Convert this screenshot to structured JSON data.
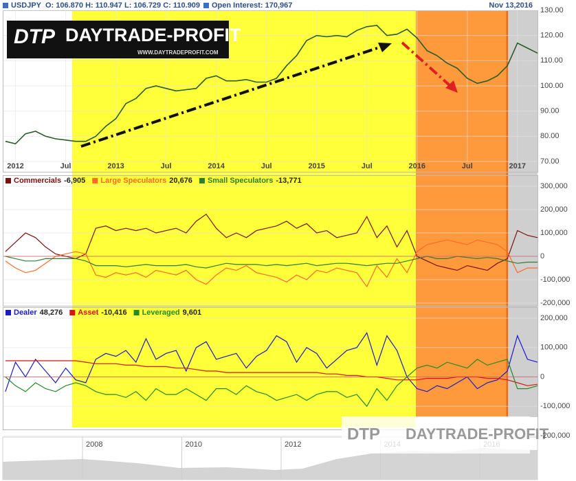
{
  "header": {
    "symbol": "USDJPY",
    "ohlc": "O: 106.870 H: 110.947 L: 106.729 C: 110.909",
    "open_interest": "Open Interest: 170,967",
    "date": "Nov 13,2016"
  },
  "logo": {
    "mark": "DTP",
    "name": "DAYTRADE-PROFIT",
    "url": "WWW.DAYTRADEPROFIT.COM"
  },
  "navigator": {
    "labels": [
      "2008",
      "2010",
      "2012",
      "2014",
      "2016"
    ]
  },
  "chart_data": [
    {
      "type": "line",
      "x": [
        2011.9,
        2012.0,
        2012.1,
        2012.2,
        2012.3,
        2012.4,
        2012.5,
        2012.6,
        2012.7,
        2012.8,
        2012.9,
        2013.0,
        2013.1,
        2013.2,
        2013.3,
        2013.4,
        2013.5,
        2013.6,
        2013.7,
        2013.8,
        2013.9,
        2014.0,
        2014.1,
        2014.2,
        2014.3,
        2014.4,
        2014.5,
        2014.6,
        2014.7,
        2014.8,
        2014.9,
        2015.0,
        2015.1,
        2015.2,
        2015.3,
        2015.4,
        2015.5,
        2015.6,
        2015.7,
        2015.8,
        2015.9,
        2016.0,
        2016.1,
        2016.2,
        2016.3,
        2016.4,
        2016.5,
        2016.6,
        2016.7,
        2016.8,
        2016.9,
        2017.0,
        2017.1,
        2017.2
      ],
      "values": [
        78,
        77,
        81,
        82,
        80,
        79,
        78.5,
        78,
        78,
        80,
        84,
        87,
        93,
        95,
        99,
        100,
        99,
        98,
        98.5,
        99,
        103,
        104,
        102,
        102,
        102.5,
        101.5,
        101.5,
        103,
        108,
        112,
        118,
        120,
        119.5,
        120,
        119.5,
        122,
        123.5,
        124,
        120,
        120.5,
        122.5,
        119,
        114,
        112,
        109,
        107,
        103,
        101,
        102,
        104,
        108,
        117,
        115,
        113
      ],
      "color": "#2a5a2a",
      "xlim": [
        2011.88,
        2017.2
      ],
      "xticks": [
        2012,
        {
          "value": 2012.5,
          "label": "Jul"
        },
        2013,
        {
          "value": 2013.5,
          "label": "Jul"
        },
        2014,
        {
          "value": 2014.5,
          "label": "Jul"
        },
        2015,
        {
          "value": 2015.5,
          "label": "Jul"
        },
        2016,
        {
          "value": 2016.5,
          "label": "Jul"
        },
        2017
      ],
      "ylim": [
        70,
        130
      ],
      "yticks": [
        {
          "value": 70,
          "label": "70.00"
        },
        {
          "value": 80,
          "label": "80.00"
        },
        {
          "value": 90,
          "label": "90.00"
        },
        {
          "value": 100,
          "label": "100.00"
        },
        {
          "value": 110,
          "label": "110.00"
        },
        {
          "value": 120,
          "label": "120.00"
        },
        {
          "value": 130,
          "label": "130.00"
        }
      ],
      "grid": true
    },
    {
      "type": "line",
      "x": [
        2011.9,
        2012.0,
        2012.1,
        2012.2,
        2012.3,
        2012.4,
        2012.5,
        2012.6,
        2012.7,
        2012.8,
        2012.9,
        2013.0,
        2013.1,
        2013.2,
        2013.3,
        2013.4,
        2013.5,
        2013.6,
        2013.7,
        2013.8,
        2013.9,
        2014.0,
        2014.1,
        2014.2,
        2014.3,
        2014.4,
        2014.5,
        2014.6,
        2014.7,
        2014.8,
        2014.9,
        2015.0,
        2015.1,
        2015.2,
        2015.3,
        2015.4,
        2015.5,
        2015.6,
        2015.7,
        2015.8,
        2015.9,
        2016.0,
        2016.1,
        2016.2,
        2016.3,
        2016.4,
        2016.5,
        2016.6,
        2016.7,
        2016.8,
        2016.9,
        2017.0,
        2017.1,
        2017.2
      ],
      "xlim": [
        2011.88,
        2017.2
      ],
      "ylim": [
        -200000,
        300000
      ],
      "yticks": [
        {
          "value": -200000,
          "label": "-200,000"
        },
        {
          "value": -100000,
          "label": "-100,000"
        },
        0,
        {
          "value": 100000,
          "label": "100,000"
        },
        {
          "value": 200000,
          "label": "200,000"
        },
        {
          "value": 300000,
          "label": "300,000"
        }
      ],
      "series": [
        {
          "name": "Commercials",
          "legend_value": "-6,905",
          "color": "#7a1010",
          "values": [
            20000,
            60000,
            100000,
            80000,
            40000,
            10000,
            0,
            -10000,
            10000,
            120000,
            130000,
            110000,
            120000,
            110000,
            120000,
            100000,
            110000,
            120000,
            100000,
            150000,
            180000,
            120000,
            80000,
            100000,
            80000,
            110000,
            120000,
            130000,
            150000,
            120000,
            140000,
            100000,
            110000,
            80000,
            90000,
            100000,
            170000,
            80000,
            130000,
            40000,
            110000,
            0,
            -20000,
            -40000,
            -50000,
            -60000,
            -40000,
            -50000,
            -60000,
            -30000,
            -10000,
            110000,
            90000,
            80000
          ]
        },
        {
          "name": "Large Speculators",
          "legend_value": "20,676",
          "color": "#ff6a2a",
          "values": [
            -20000,
            -50000,
            -70000,
            -60000,
            -30000,
            0,
            10000,
            20000,
            10000,
            -80000,
            -90000,
            -70000,
            -80000,
            -70000,
            -90000,
            -60000,
            -70000,
            -80000,
            -60000,
            -100000,
            -120000,
            -80000,
            -50000,
            -60000,
            -40000,
            -70000,
            -80000,
            -90000,
            -110000,
            -80000,
            -100000,
            -60000,
            -70000,
            -50000,
            -60000,
            -70000,
            -130000,
            -40000,
            -90000,
            -10000,
            -70000,
            20000,
            50000,
            60000,
            70000,
            60000,
            50000,
            70000,
            60000,
            50000,
            20000,
            -70000,
            -50000,
            -50000
          ]
        },
        {
          "name": "Small Speculators",
          "legend_value": "-13,771",
          "color": "#2e7d32",
          "values": [
            0,
            -10000,
            -20000,
            -20000,
            -10000,
            -10000,
            -10000,
            -10000,
            -20000,
            -40000,
            -40000,
            -40000,
            -45000,
            -40000,
            -35000,
            -40000,
            -40000,
            -40000,
            -35000,
            -45000,
            -50000,
            -40000,
            -30000,
            -35000,
            -35000,
            -35000,
            -40000,
            -35000,
            -40000,
            -35000,
            -30000,
            -40000,
            -35000,
            -30000,
            -30000,
            -35000,
            -40000,
            -35000,
            -30000,
            -30000,
            -20000,
            -10000,
            0,
            -10000,
            -10000,
            0,
            -5000,
            -10000,
            -5000,
            -10000,
            -20000,
            -30000,
            -25000,
            -25000
          ]
        }
      ]
    },
    {
      "type": "line",
      "x": [
        2011.9,
        2012.0,
        2012.1,
        2012.2,
        2012.3,
        2012.4,
        2012.5,
        2012.6,
        2012.7,
        2012.8,
        2012.9,
        2013.0,
        2013.1,
        2013.2,
        2013.3,
        2013.4,
        2013.5,
        2013.6,
        2013.7,
        2013.8,
        2013.9,
        2014.0,
        2014.1,
        2014.2,
        2014.3,
        2014.4,
        2014.5,
        2014.6,
        2014.7,
        2014.8,
        2014.9,
        2015.0,
        2015.1,
        2015.2,
        2015.3,
        2015.4,
        2015.5,
        2015.6,
        2015.7,
        2015.8,
        2015.9,
        2016.0,
        2016.1,
        2016.2,
        2016.3,
        2016.4,
        2016.5,
        2016.6,
        2016.7,
        2016.8,
        2016.9,
        2017.0,
        2017.1,
        2017.2
      ],
      "xlim": [
        2011.88,
        2017.2
      ],
      "ylim": [
        -200000,
        200000
      ],
      "yticks": [
        {
          "value": -200000,
          "label": "-200,000"
        },
        {
          "value": -100000,
          "label": "-100,000"
        },
        0,
        {
          "value": 100000,
          "label": "100,000"
        },
        {
          "value": 200000,
          "label": "200,000"
        }
      ],
      "series": [
        {
          "name": "Dealer",
          "legend_value": "48,276",
          "color": "#1a1acc",
          "values": [
            -50000,
            50000,
            0,
            60000,
            20000,
            -20000,
            30000,
            -10000,
            -20000,
            60000,
            80000,
            70000,
            90000,
            50000,
            130000,
            60000,
            80000,
            90000,
            20000,
            100000,
            120000,
            60000,
            70000,
            80000,
            30000,
            70000,
            90000,
            140000,
            120000,
            50000,
            100000,
            80000,
            30000,
            60000,
            90000,
            100000,
            150000,
            40000,
            140000,
            90000,
            0,
            -40000,
            -50000,
            -30000,
            -40000,
            -20000,
            0,
            -40000,
            -20000,
            -10000,
            20000,
            140000,
            60000,
            50000
          ]
        },
        {
          "name": "Asset",
          "legend_value": "-10,416",
          "color": "#e01010",
          "values": [
            55000,
            55000,
            55000,
            55000,
            55000,
            55000,
            55000,
            55000,
            50000,
            45000,
            45000,
            45000,
            40000,
            40000,
            35000,
            35000,
            35000,
            30000,
            30000,
            25000,
            20000,
            20000,
            15000,
            15000,
            15000,
            15000,
            15000,
            15000,
            15000,
            15000,
            15000,
            15000,
            10000,
            10000,
            5000,
            5000,
            0,
            0,
            -5000,
            -10000,
            -10000,
            -10000,
            -5000,
            -5000,
            -5000,
            0,
            0,
            0,
            -5000,
            -5000,
            -10000,
            -20000,
            -30000,
            -25000
          ]
        },
        {
          "name": "Leveraged",
          "legend_value": "9,601",
          "color": "#238b23",
          "values": [
            0,
            -30000,
            -50000,
            -20000,
            -40000,
            -50000,
            -30000,
            -20000,
            -30000,
            -50000,
            -60000,
            -60000,
            -70000,
            -50000,
            -80000,
            -40000,
            -60000,
            -60000,
            -40000,
            -60000,
            -80000,
            -40000,
            -40000,
            -60000,
            -30000,
            -50000,
            -60000,
            -80000,
            -70000,
            -60000,
            -80000,
            -60000,
            -50000,
            -50000,
            -70000,
            -60000,
            -100000,
            -40000,
            -80000,
            -30000,
            0,
            30000,
            40000,
            30000,
            50000,
            40000,
            30000,
            60000,
            40000,
            50000,
            60000,
            -40000,
            -40000,
            -30000
          ]
        }
      ]
    }
  ]
}
